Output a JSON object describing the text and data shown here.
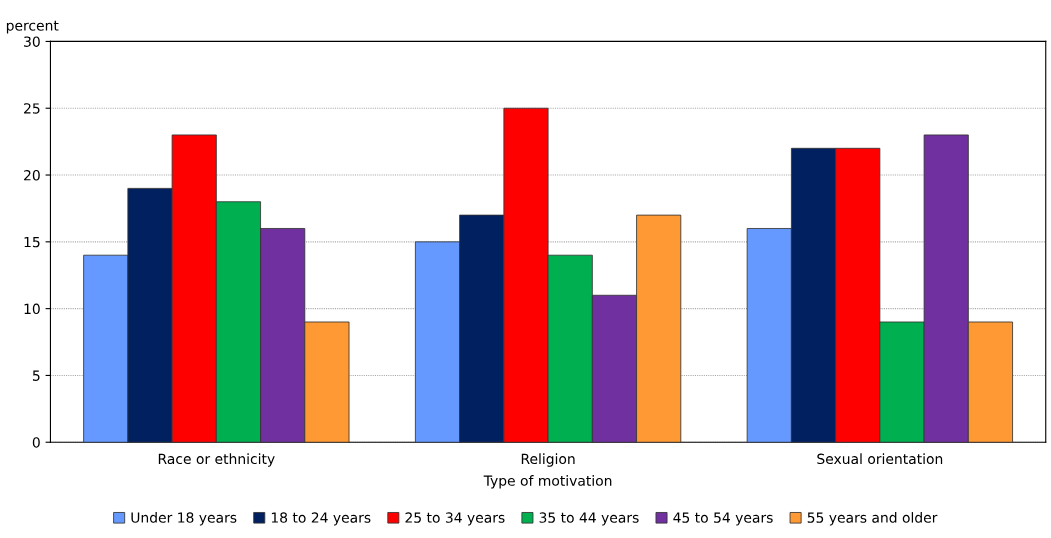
{
  "chart_data": {
    "type": "bar",
    "xlabel": "Type of motivation",
    "ylabel": "percent",
    "categories": [
      "Race or ethnicity",
      "Religion",
      "Sexual orientation"
    ],
    "series": [
      {
        "name": "Under 18 years",
        "color": "#6699ff",
        "values": [
          14,
          15,
          16
        ]
      },
      {
        "name": "18 to 24 years",
        "color": "#002060",
        "values": [
          19,
          17,
          22
        ]
      },
      {
        "name": "25 to 34 years",
        "color": "#ff0000",
        "values": [
          23,
          25,
          22
        ]
      },
      {
        "name": "35 to 44 years",
        "color": "#00b050",
        "values": [
          18,
          14,
          9
        ]
      },
      {
        "name": "45 to 54 years",
        "color": "#7030a0",
        "values": [
          16,
          11,
          23
        ]
      },
      {
        "name": "55 years and older",
        "color": "#ff9933",
        "values": [
          9,
          17,
          9
        ]
      }
    ],
    "ylim": [
      0,
      30
    ],
    "yticks": [
      0,
      5,
      10,
      15,
      20,
      25,
      30
    ],
    "grid": "y",
    "legend": "bottom"
  }
}
